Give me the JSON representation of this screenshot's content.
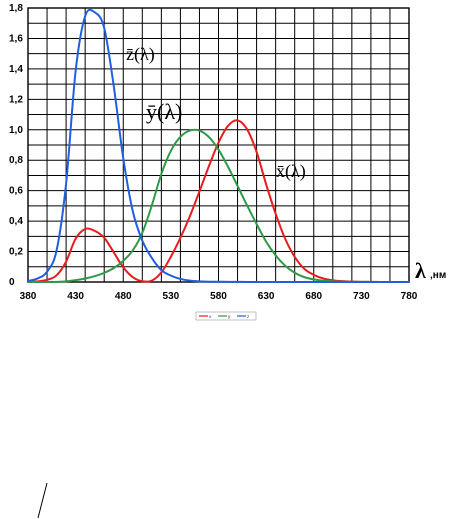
{
  "chart_data": {
    "type": "line",
    "xlim": [
      380,
      780
    ],
    "ylim": [
      0,
      1.8
    ],
    "grid": true,
    "x_ticks": [
      "380",
      "430",
      "480",
      "530",
      "580",
      "630",
      "680",
      "730",
      "780"
    ],
    "y_ticks": [
      "0",
      "0,2",
      "0,4",
      "0,6",
      "0,8",
      "1,0",
      "1,2",
      "1,4",
      "1,6",
      "1,8"
    ],
    "xlabel": {
      "symbol": "λ",
      "unit": ",нм"
    },
    "legend_position": "bottom-center",
    "legend_entries": [
      "x",
      "y",
      "z"
    ],
    "series": [
      {
        "name": "x̄(λ)",
        "color": "#e81c1c",
        "x": [
          380,
          390,
          400,
          410,
          420,
          430,
          440,
          450,
          460,
          470,
          480,
          490,
          500,
          510,
          520,
          530,
          540,
          550,
          560,
          570,
          580,
          590,
          600,
          610,
          620,
          630,
          640,
          650,
          660,
          670,
          680,
          690,
          700,
          710,
          720,
          730,
          740,
          750,
          760,
          770,
          780
        ],
        "y": [
          0.001,
          0.004,
          0.014,
          0.044,
          0.134,
          0.284,
          0.348,
          0.336,
          0.291,
          0.195,
          0.096,
          0.032,
          0.005,
          0.009,
          0.063,
          0.166,
          0.29,
          0.433,
          0.595,
          0.762,
          0.916,
          1.026,
          1.062,
          1.003,
          0.854,
          0.642,
          0.448,
          0.284,
          0.165,
          0.087,
          0.047,
          0.023,
          0.011,
          0.006,
          0.003,
          0.001,
          0.001,
          0.0,
          0.0,
          0.0,
          0.0
        ]
      },
      {
        "name": "ȳ(λ)",
        "color": "#2e9a48",
        "x": [
          380,
          390,
          400,
          410,
          420,
          430,
          440,
          450,
          460,
          470,
          480,
          490,
          500,
          510,
          520,
          530,
          540,
          550,
          560,
          570,
          580,
          590,
          600,
          610,
          620,
          630,
          640,
          650,
          660,
          670,
          680,
          690,
          700,
          710,
          720,
          730,
          740,
          750,
          760,
          770,
          780
        ],
        "y": [
          0.0,
          0.0,
          0.0,
          0.001,
          0.004,
          0.012,
          0.023,
          0.038,
          0.06,
          0.091,
          0.139,
          0.208,
          0.323,
          0.503,
          0.71,
          0.862,
          0.954,
          0.995,
          0.995,
          0.952,
          0.87,
          0.757,
          0.631,
          0.503,
          0.381,
          0.265,
          0.175,
          0.107,
          0.061,
          0.032,
          0.017,
          0.008,
          0.004,
          0.002,
          0.001,
          0.001,
          0.0,
          0.0,
          0.0,
          0.0,
          0.0
        ]
      },
      {
        "name": "z̄(λ)",
        "color": "#1f5fe0",
        "x": [
          380,
          390,
          400,
          410,
          420,
          430,
          440,
          450,
          460,
          470,
          480,
          490,
          500,
          510,
          520,
          530,
          540,
          550,
          560,
          570,
          580,
          590,
          600,
          610,
          620,
          630,
          640,
          650,
          660,
          670,
          680,
          690,
          700,
          710,
          720,
          730,
          740,
          750,
          760,
          770,
          780
        ],
        "y": [
          0.007,
          0.023,
          0.068,
          0.207,
          0.646,
          1.386,
          1.747,
          1.772,
          1.669,
          1.288,
          0.813,
          0.465,
          0.272,
          0.158,
          0.078,
          0.042,
          0.02,
          0.009,
          0.004,
          0.002,
          0.002,
          0.001,
          0.001,
          0.0,
          0.0,
          0.0,
          0.0,
          0.0,
          0.0,
          0.0,
          0.0,
          0.0,
          0.0,
          0.0,
          0.0,
          0.0,
          0.0,
          0.0,
          0.0,
          0.0,
          0.0
        ]
      }
    ]
  }
}
